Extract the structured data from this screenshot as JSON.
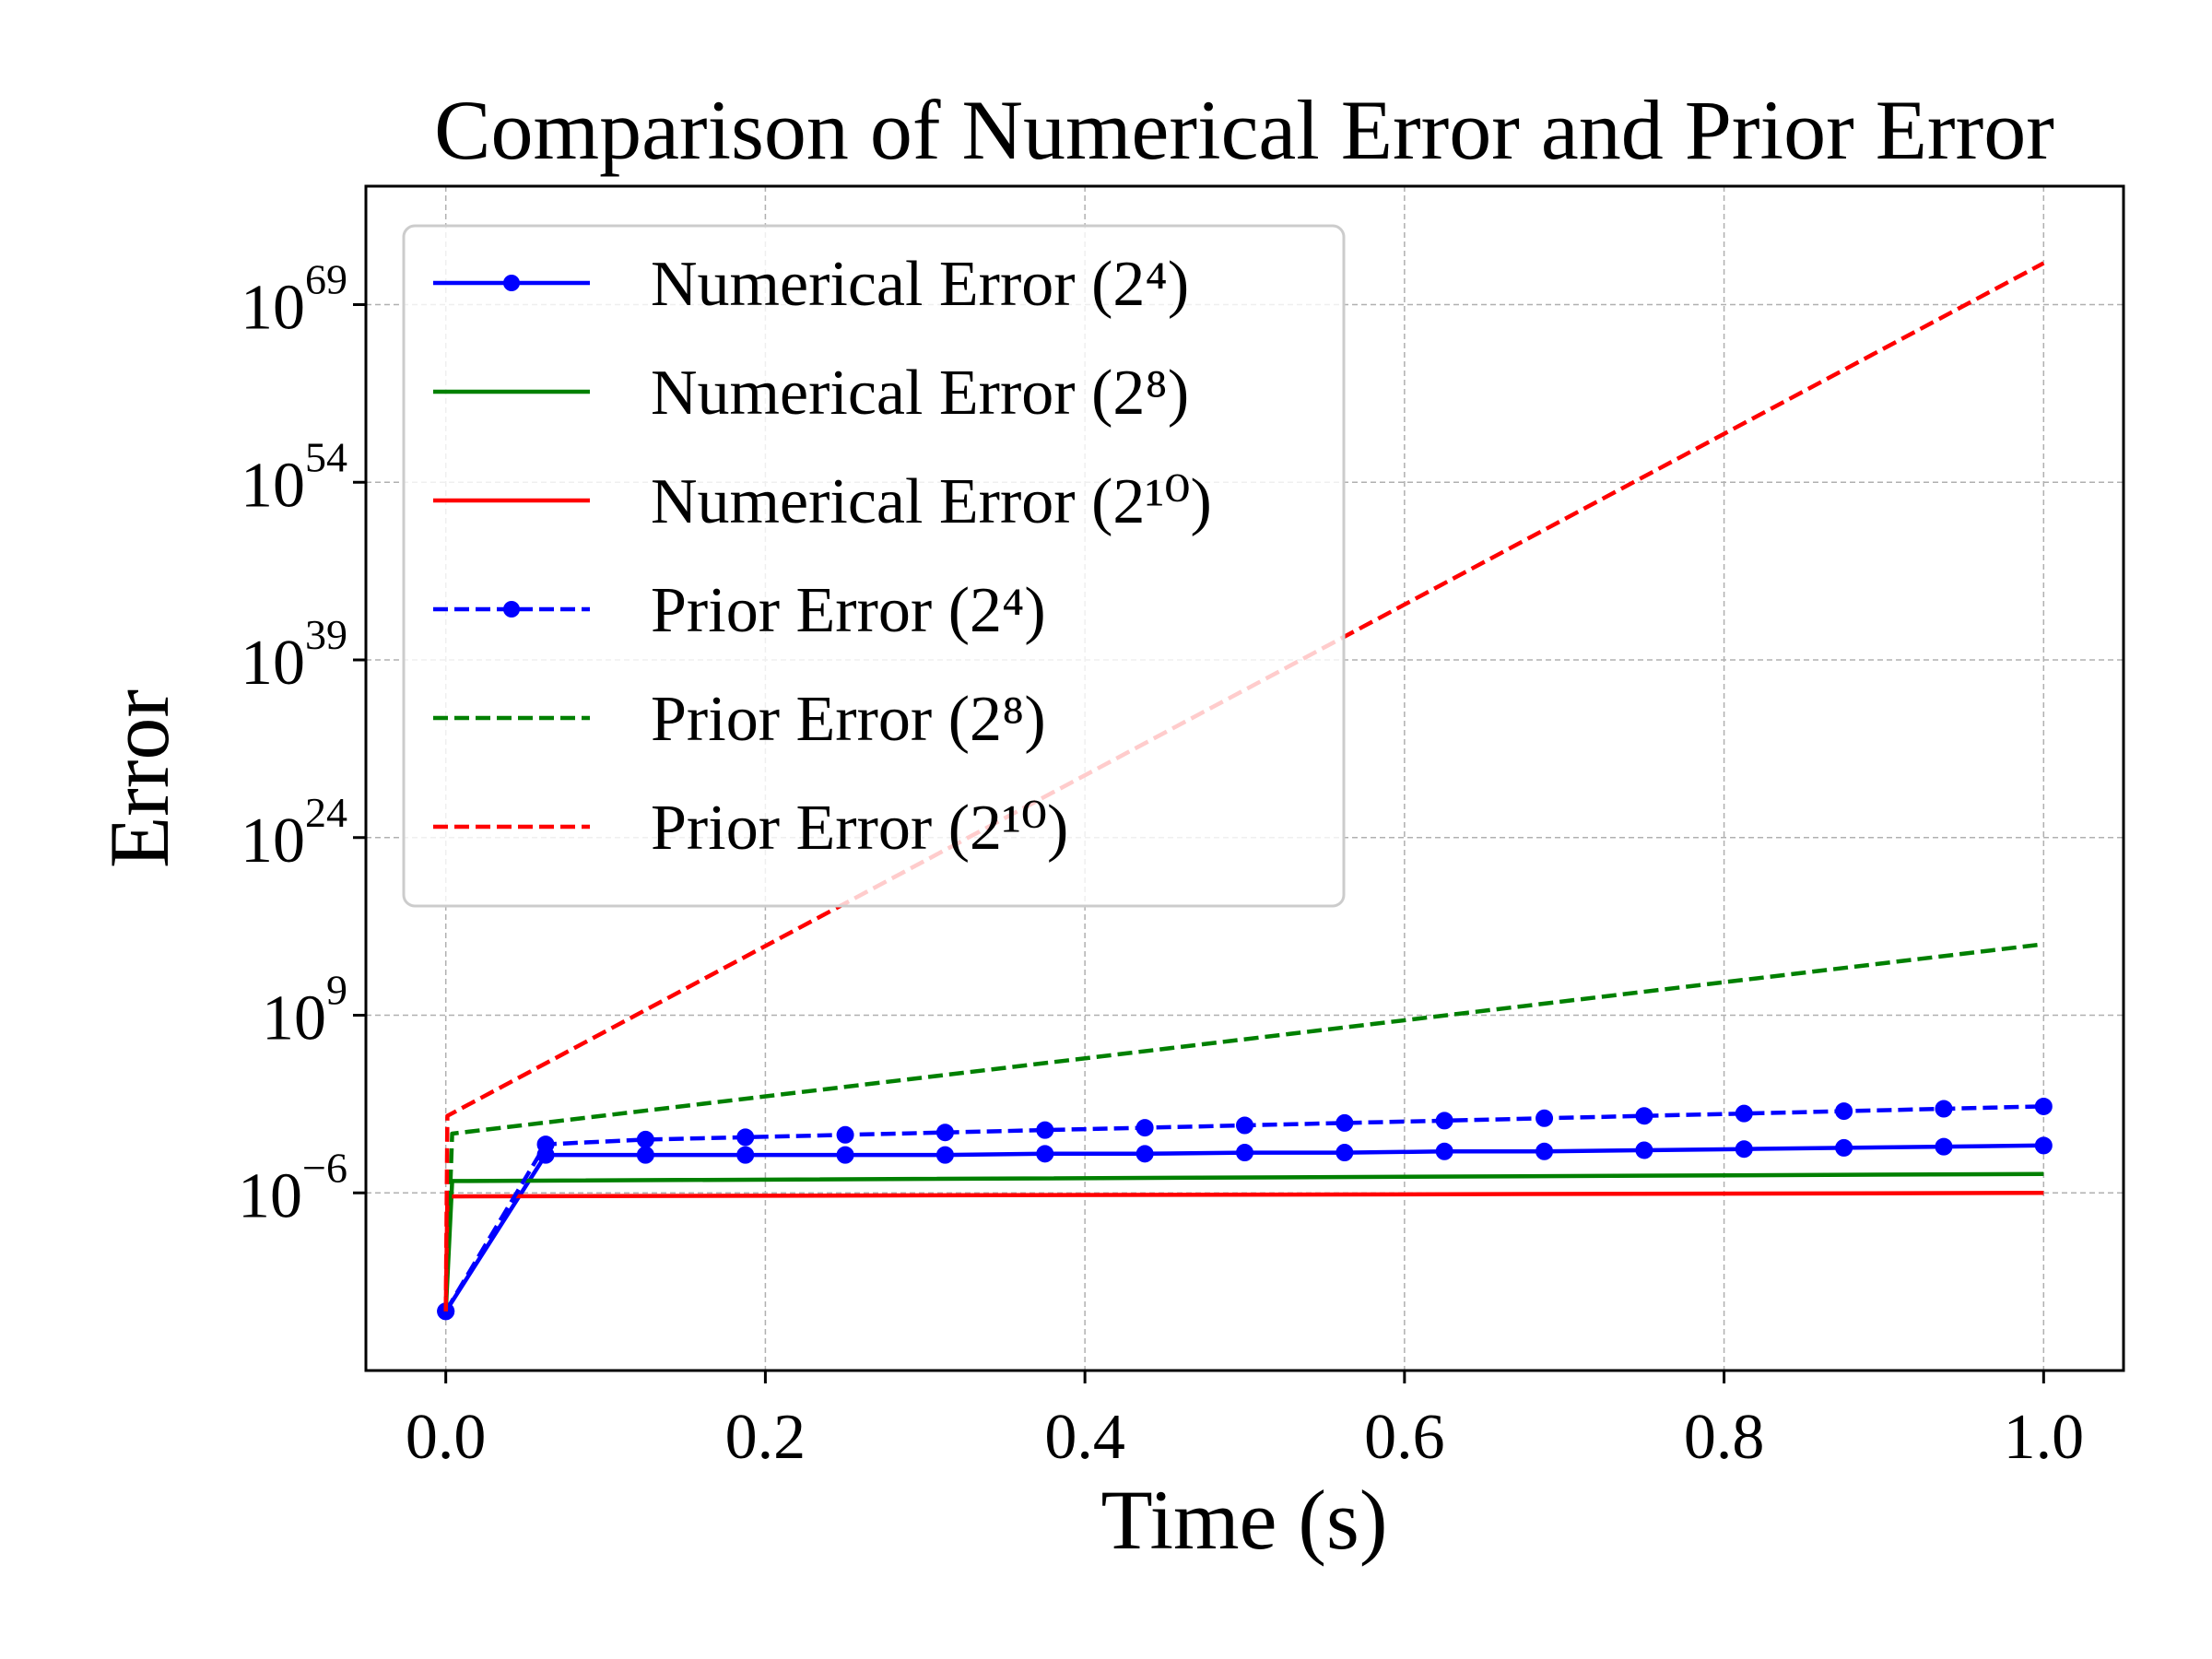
{
  "chart_data": {
    "type": "line",
    "title": "Comparison of Numerical Error and Prior Error",
    "xlabel": "Time (s)",
    "ylabel": "Error",
    "yscale": "log",
    "xlim": [
      -0.05,
      1.05
    ],
    "ylim_log10": [
      -21,
      79
    ],
    "xticks": [
      0.0,
      0.2,
      0.4,
      0.6,
      0.8,
      1.0
    ],
    "xtick_labels": [
      "0.0",
      "0.2",
      "0.4",
      "0.6",
      "0.8",
      "1.0"
    ],
    "yticks_log10": [
      -6,
      9,
      24,
      39,
      54,
      69
    ],
    "ytick_labels": [
      {
        "base": "10",
        "exp": "−6"
      },
      {
        "base": "10",
        "exp": "9"
      },
      {
        "base": "10",
        "exp": "24"
      },
      {
        "base": "10",
        "exp": "39"
      },
      {
        "base": "10",
        "exp": "54"
      },
      {
        "base": "10",
        "exp": "69"
      }
    ],
    "grid": true,
    "legend_position": "upper-left",
    "series": [
      {
        "name": "Numerical Error (2⁴)",
        "color": "#0000ff",
        "style": "solid",
        "marker": true,
        "x": [
          0.0,
          0.0625,
          0.125,
          0.1875,
          0.25,
          0.3125,
          0.375,
          0.4375,
          0.5,
          0.5625,
          0.625,
          0.6875,
          0.75,
          0.8125,
          0.875,
          0.9375,
          1.0
        ],
        "y_log10": [
          -16,
          -2.8,
          -2.8,
          -2.8,
          -2.8,
          -2.8,
          -2.7,
          -2.7,
          -2.6,
          -2.6,
          -2.5,
          -2.5,
          -2.4,
          -2.3,
          -2.2,
          -2.1,
          -2.0
        ]
      },
      {
        "name": "Numerical Error (2⁸)",
        "color": "#008000",
        "style": "solid",
        "marker": false,
        "x": [
          0.0,
          0.004,
          1.0
        ],
        "y_log10": [
          -16,
          -5.0,
          -4.4
        ]
      },
      {
        "name": "Numerical Error (2¹⁰)",
        "color": "#ff0000",
        "style": "solid",
        "marker": false,
        "x": [
          0.0,
          0.001,
          1.0
        ],
        "y_log10": [
          -16,
          -6.3,
          -6.0
        ]
      },
      {
        "name": "Prior Error (2⁴)",
        "color": "#0000ff",
        "style": "dashed",
        "marker": true,
        "x": [
          0.0,
          0.0625,
          0.125,
          0.1875,
          0.25,
          0.3125,
          0.375,
          0.4375,
          0.5,
          0.5625,
          0.625,
          0.6875,
          0.75,
          0.8125,
          0.875,
          0.9375,
          1.0
        ],
        "y_log10": [
          -16,
          -1.9,
          -1.5,
          -1.3,
          -1.1,
          -0.9,
          -0.7,
          -0.5,
          -0.3,
          -0.1,
          0.1,
          0.3,
          0.5,
          0.7,
          0.9,
          1.1,
          1.3
        ]
      },
      {
        "name": "Prior Error (2⁸)",
        "color": "#008000",
        "style": "dashed",
        "marker": false,
        "x": [
          0.0,
          0.004,
          1.0
        ],
        "y_log10": [
          -16,
          -1.0,
          15.0
        ]
      },
      {
        "name": "Prior Error (2¹⁰)",
        "color": "#ff0000",
        "style": "dashed",
        "marker": false,
        "x": [
          0.0,
          0.001,
          1.0
        ],
        "y_log10": [
          -16,
          0.5,
          72.5
        ]
      }
    ]
  }
}
